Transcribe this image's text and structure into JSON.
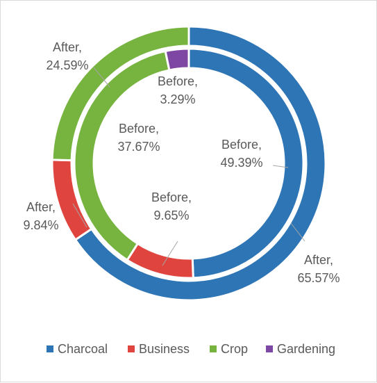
{
  "chart_data": {
    "type": "pie",
    "subtype": "doughnut",
    "categories": [
      "Charcoal",
      "Business",
      "Crop",
      "Gardening"
    ],
    "colors": [
      "#2e75b6",
      "#e0443e",
      "#77b33f",
      "#7f47a4"
    ],
    "series": [
      {
        "name": "After",
        "ring": "outer",
        "values": [
          65.57,
          9.84,
          24.59,
          0
        ],
        "labels": {
          "Charcoal": [
            "After,",
            "65.57%"
          ],
          "Business": [
            "After,",
            "9.84%"
          ],
          "Crop": [
            "After,",
            "24.59%"
          ]
        }
      },
      {
        "name": "Before",
        "ring": "inner",
        "values": [
          49.39,
          9.65,
          37.67,
          3.29
        ],
        "labels": {
          "Charcoal": [
            "Before,",
            "49.39%"
          ],
          "Business": [
            "Before,",
            "9.65%"
          ],
          "Crop": [
            "Before,",
            "37.67%"
          ],
          "Gardening": [
            "Before,",
            "3.29%"
          ]
        }
      }
    ],
    "legend": {
      "position": "bottom",
      "entries": [
        "Charcoal",
        "Business",
        "Crop",
        "Gardening"
      ]
    }
  }
}
